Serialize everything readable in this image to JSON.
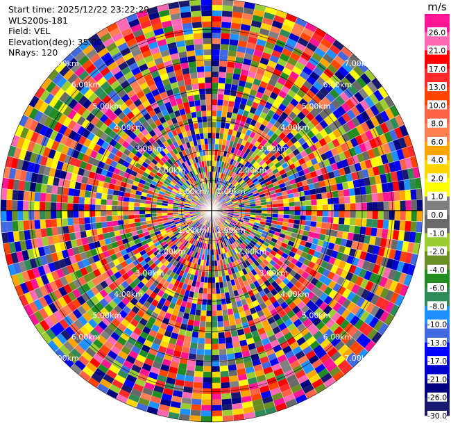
{
  "header": {
    "start_time": "Start time: 2025/12/22 23:22:29",
    "instrument": "WLS200s-181",
    "field": "Field: VEL",
    "elevation": "Elevation(deg): 35.00",
    "nrays": "NRays: 120"
  },
  "chart_data": {
    "type": "heatmap",
    "projection": "polar-ppi",
    "field": "VEL",
    "unit": "m/s",
    "elevation_deg": 35.0,
    "n_rays": 120,
    "range_rings_km": [
      "1.00km",
      "2.00km",
      "3.00km",
      "4.00km",
      "5.00km",
      "6.00km",
      "7.00km"
    ],
    "ring_label_bearings_deg": [
      -45,
      45,
      135,
      225
    ],
    "colorbar": {
      "ticks": [
        "26.0",
        "21.0",
        "17.0",
        "13.0",
        "10.0",
        "8.0",
        "6.0",
        "4.0",
        "2.0",
        "1.0",
        "0.0",
        "-1.0",
        "-2.0",
        "-4.0",
        "-6.0",
        "-8.0",
        "-10.0",
        "-13.0",
        "-17.0",
        "-21.0",
        "-26.0",
        "-30.0"
      ],
      "colors": [
        "#ff1493",
        "#ff69b4",
        "#ff0000",
        "#ff2a2a",
        "#ff4500",
        "#ff6347",
        "#ff7f50",
        "#ffa500",
        "#ffd700",
        "#ffff00",
        "#808080",
        "#696969",
        "#9acd32",
        "#6b8e23",
        "#228b22",
        "#2e8b57",
        "#1e90ff",
        "#4169e1",
        "#0000ff",
        "#0000cd",
        "#000080",
        "#191970"
      ]
    }
  }
}
